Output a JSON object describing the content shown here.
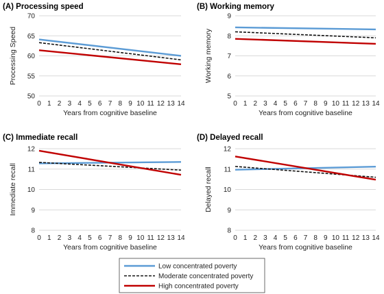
{
  "legend": {
    "items": [
      {
        "label": "Low concentrated poverty",
        "color": "#5b9bd5",
        "dash": false
      },
      {
        "label": "Moderate concentrated poverty",
        "color": "#111111",
        "dash": true
      },
      {
        "label": "High concentrated poverty",
        "color": "#c00000",
        "dash": false
      }
    ]
  },
  "chart_data": [
    {
      "type": "line",
      "title": "(A) Processing speed",
      "xlabel": "Years from cognitive baseline",
      "ylabel": "Processing Speed",
      "x": [
        0,
        14
      ],
      "xticks": [
        "0",
        "1",
        "2",
        "3",
        "4",
        "5",
        "6",
        "7",
        "8",
        "9",
        "10",
        "11",
        "12",
        "13",
        "14"
      ],
      "ylim": [
        50,
        70
      ],
      "yticks": [
        50,
        55,
        60,
        65,
        70
      ],
      "grid": true,
      "series": [
        {
          "name": "Low concentrated poverty",
          "values": [
            64.1,
            60.0
          ]
        },
        {
          "name": "Moderate concentrated poverty",
          "values": [
            63.3,
            59.0
          ]
        },
        {
          "name": "High concentrated poverty",
          "values": [
            61.4,
            57.9
          ]
        }
      ]
    },
    {
      "type": "line",
      "title": "(B) Working memory",
      "xlabel": "Years from cognitive baseline",
      "ylabel": "Working memory",
      "x": [
        0,
        14
      ],
      "xticks": [
        "0",
        "1",
        "2",
        "3",
        "4",
        "5",
        "6",
        "7",
        "8",
        "9",
        "10",
        "11",
        "12",
        "13",
        "14"
      ],
      "ylim": [
        5,
        9
      ],
      "yticks": [
        5,
        6,
        7,
        8,
        9
      ],
      "grid": true,
      "series": [
        {
          "name": "Low concentrated poverty",
          "values": [
            8.42,
            8.32
          ]
        },
        {
          "name": "Moderate concentrated poverty",
          "values": [
            8.2,
            7.9
          ]
        },
        {
          "name": "High concentrated poverty",
          "values": [
            7.85,
            7.6
          ]
        }
      ]
    },
    {
      "type": "line",
      "title": "(C) Immediate recall",
      "xlabel": "Years from cognitive baseline",
      "ylabel": "Immediate recall",
      "x": [
        0,
        14
      ],
      "xticks": [
        "0",
        "1",
        "2",
        "3",
        "4",
        "5",
        "6",
        "7",
        "8",
        "9",
        "10",
        "11",
        "12",
        "13",
        "14"
      ],
      "ylim": [
        8,
        12
      ],
      "yticks": [
        8,
        9,
        10,
        11,
        12
      ],
      "grid": true,
      "series": [
        {
          "name": "Low concentrated poverty",
          "values": [
            11.28,
            11.35
          ]
        },
        {
          "name": "Moderate concentrated poverty",
          "values": [
            11.33,
            10.95
          ]
        },
        {
          "name": "High concentrated poverty",
          "values": [
            11.9,
            10.72
          ]
        }
      ]
    },
    {
      "type": "line",
      "title": "(D) Delayed recall",
      "xlabel": "Years from cognitive baseline",
      "ylabel": "Delayed recall",
      "x": [
        0,
        14
      ],
      "xticks": [
        "0",
        "1",
        "2",
        "3",
        "4",
        "5",
        "6",
        "7",
        "8",
        "9",
        "10",
        "11",
        "12",
        "13",
        "14"
      ],
      "ylim": [
        8,
        12
      ],
      "yticks": [
        8,
        9,
        10,
        11,
        12
      ],
      "grid": true,
      "series": [
        {
          "name": "Low concentrated poverty",
          "values": [
            10.97,
            11.12
          ]
        },
        {
          "name": "Moderate concentrated poverty",
          "values": [
            11.13,
            10.6
          ]
        },
        {
          "name": "High concentrated poverty",
          "values": [
            11.62,
            10.48
          ]
        }
      ]
    }
  ]
}
